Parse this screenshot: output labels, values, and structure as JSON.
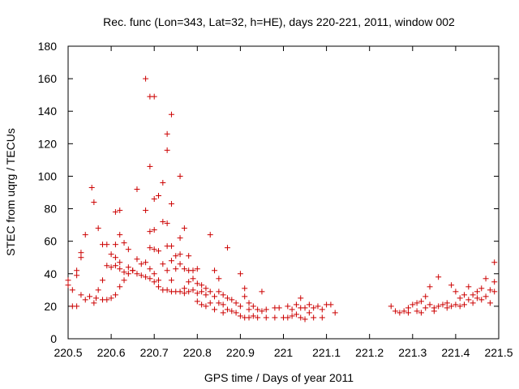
{
  "chart_data": {
    "type": "scatter",
    "title": "Rec. func (Lon=343, Lat=32, h=HE), days 220-221, 2011, window 002",
    "xlabel": "GPS time / Days of year 2011",
    "ylabel": "STEC from uqrg / TECUs",
    "xlim": [
      220.5,
      221.5
    ],
    "ylim": [
      0,
      180
    ],
    "xticks": [
      "220.5",
      "220.6",
      "220.7",
      "220.8",
      "220.9",
      "221",
      "221.1",
      "221.2",
      "221.3",
      "221.4",
      "221.5"
    ],
    "yticks": [
      "0",
      "20",
      "40",
      "60",
      "80",
      "100",
      "120",
      "140",
      "160",
      "180"
    ],
    "grid": false,
    "legend": "none",
    "marker": "plus",
    "color": "#cc0000",
    "points": [
      [
        220.5,
        33
      ],
      [
        220.5,
        36
      ],
      [
        220.51,
        20
      ],
      [
        220.51,
        30
      ],
      [
        220.52,
        39
      ],
      [
        220.52,
        42
      ],
      [
        220.52,
        20
      ],
      [
        220.53,
        50
      ],
      [
        220.53,
        53
      ],
      [
        220.53,
        27
      ],
      [
        220.54,
        64
      ],
      [
        220.54,
        24
      ],
      [
        220.55,
        26
      ],
      [
        220.555,
        93
      ],
      [
        220.56,
        84
      ],
      [
        220.56,
        22
      ],
      [
        220.565,
        25
      ],
      [
        220.57,
        68
      ],
      [
        220.57,
        30
      ],
      [
        220.58,
        58
      ],
      [
        220.58,
        36
      ],
      [
        220.58,
        24
      ],
      [
        220.59,
        58
      ],
      [
        220.59,
        45
      ],
      [
        220.59,
        24
      ],
      [
        220.6,
        52
      ],
      [
        220.6,
        44
      ],
      [
        220.6,
        25
      ],
      [
        220.61,
        78
      ],
      [
        220.61,
        58
      ],
      [
        220.61,
        50
      ],
      [
        220.61,
        45
      ],
      [
        220.61,
        27
      ],
      [
        220.62,
        79
      ],
      [
        220.62,
        64
      ],
      [
        220.62,
        47
      ],
      [
        220.62,
        43
      ],
      [
        220.62,
        32
      ],
      [
        220.63,
        59
      ],
      [
        220.63,
        41
      ],
      [
        220.63,
        36
      ],
      [
        220.64,
        55
      ],
      [
        220.64,
        44
      ],
      [
        220.64,
        40
      ],
      [
        220.65,
        42
      ],
      [
        220.65,
        42
      ],
      [
        220.66,
        92
      ],
      [
        220.66,
        49
      ],
      [
        220.66,
        40
      ],
      [
        220.67,
        46
      ],
      [
        220.67,
        39
      ],
      [
        220.68,
        160
      ],
      [
        220.68,
        79
      ],
      [
        220.68,
        47
      ],
      [
        220.68,
        38
      ],
      [
        220.69,
        149
      ],
      [
        220.69,
        106
      ],
      [
        220.69,
        66
      ],
      [
        220.69,
        56
      ],
      [
        220.69,
        43
      ],
      [
        220.69,
        37
      ],
      [
        220.7,
        149
      ],
      [
        220.7,
        86
      ],
      [
        220.7,
        67
      ],
      [
        220.7,
        55
      ],
      [
        220.7,
        40
      ],
      [
        220.7,
        35
      ],
      [
        220.71,
        88
      ],
      [
        220.71,
        54
      ],
      [
        220.71,
        36
      ],
      [
        220.71,
        32
      ],
      [
        220.72,
        96
      ],
      [
        220.72,
        72
      ],
      [
        220.72,
        46
      ],
      [
        220.72,
        30
      ],
      [
        220.73,
        126
      ],
      [
        220.73,
        116
      ],
      [
        220.73,
        71
      ],
      [
        220.73,
        57
      ],
      [
        220.73,
        42
      ],
      [
        220.73,
        30
      ],
      [
        220.74,
        138
      ],
      [
        220.74,
        83
      ],
      [
        220.74,
        57
      ],
      [
        220.74,
        48
      ],
      [
        220.74,
        36
      ],
      [
        220.74,
        29
      ],
      [
        220.75,
        51
      ],
      [
        220.75,
        43
      ],
      [
        220.75,
        29
      ],
      [
        220.76,
        100
      ],
      [
        220.76,
        62
      ],
      [
        220.76,
        52
      ],
      [
        220.76,
        46
      ],
      [
        220.76,
        29
      ],
      [
        220.77,
        68
      ],
      [
        220.77,
        43
      ],
      [
        220.77,
        31
      ],
      [
        220.77,
        28
      ],
      [
        220.78,
        51
      ],
      [
        220.78,
        42
      ],
      [
        220.78,
        35
      ],
      [
        220.78,
        29
      ],
      [
        220.79,
        42
      ],
      [
        220.79,
        37
      ],
      [
        220.79,
        30
      ],
      [
        220.8,
        43
      ],
      [
        220.8,
        34
      ],
      [
        220.8,
        28
      ],
      [
        220.8,
        23
      ],
      [
        220.81,
        33
      ],
      [
        220.81,
        29
      ],
      [
        220.81,
        21
      ],
      [
        220.82,
        31
      ],
      [
        220.82,
        27
      ],
      [
        220.82,
        20
      ],
      [
        220.83,
        64
      ],
      [
        220.83,
        29
      ],
      [
        220.83,
        22
      ],
      [
        220.84,
        42
      ],
      [
        220.84,
        26
      ],
      [
        220.84,
        18
      ],
      [
        220.85,
        37
      ],
      [
        220.85,
        29
      ],
      [
        220.85,
        22
      ],
      [
        220.86,
        27
      ],
      [
        220.86,
        21
      ],
      [
        220.86,
        16
      ],
      [
        220.87,
        56
      ],
      [
        220.87,
        25
      ],
      [
        220.87,
        18
      ],
      [
        220.88,
        24
      ],
      [
        220.88,
        17
      ],
      [
        220.89,
        22
      ],
      [
        220.89,
        16
      ],
      [
        220.9,
        40
      ],
      [
        220.9,
        20
      ],
      [
        220.9,
        14
      ],
      [
        220.91,
        31
      ],
      [
        220.91,
        26
      ],
      [
        220.91,
        13
      ],
      [
        220.92,
        22
      ],
      [
        220.92,
        18
      ],
      [
        220.92,
        13
      ],
      [
        220.93,
        20
      ],
      [
        220.93,
        14
      ],
      [
        220.94,
        18
      ],
      [
        220.94,
        13
      ],
      [
        220.95,
        29
      ],
      [
        220.95,
        17
      ],
      [
        220.96,
        18
      ],
      [
        220.96,
        13
      ],
      [
        220.98,
        19
      ],
      [
        220.98,
        13
      ],
      [
        220.99,
        19
      ],
      [
        221.0,
        13
      ],
      [
        221.01,
        20
      ],
      [
        221.01,
        13
      ],
      [
        221.02,
        18
      ],
      [
        221.02,
        14
      ],
      [
        221.03,
        21
      ],
      [
        221.03,
        15
      ],
      [
        221.04,
        25
      ],
      [
        221.04,
        19
      ],
      [
        221.04,
        13
      ],
      [
        221.05,
        19
      ],
      [
        221.05,
        12
      ],
      [
        221.06,
        21
      ],
      [
        221.06,
        16
      ],
      [
        221.07,
        19
      ],
      [
        221.07,
        13
      ],
      [
        221.08,
        20
      ],
      [
        221.09,
        18
      ],
      [
        221.09,
        13
      ],
      [
        221.1,
        21
      ],
      [
        221.11,
        21
      ],
      [
        221.12,
        16
      ],
      [
        221.25,
        20
      ],
      [
        221.26,
        17
      ],
      [
        221.27,
        16
      ],
      [
        221.28,
        17
      ],
      [
        221.29,
        19
      ],
      [
        221.29,
        16
      ],
      [
        221.3,
        21
      ],
      [
        221.31,
        22
      ],
      [
        221.31,
        17
      ],
      [
        221.32,
        23
      ],
      [
        221.32,
        16
      ],
      [
        221.33,
        26
      ],
      [
        221.33,
        19
      ],
      [
        221.34,
        32
      ],
      [
        221.34,
        21
      ],
      [
        221.35,
        19
      ],
      [
        221.35,
        17
      ],
      [
        221.36,
        38
      ],
      [
        221.36,
        20
      ],
      [
        221.37,
        21
      ],
      [
        221.38,
        22
      ],
      [
        221.38,
        19
      ],
      [
        221.39,
        33
      ],
      [
        221.39,
        20
      ],
      [
        221.4,
        29
      ],
      [
        221.4,
        21
      ],
      [
        221.41,
        25
      ],
      [
        221.41,
        20
      ],
      [
        221.42,
        27
      ],
      [
        221.42,
        21
      ],
      [
        221.43,
        32
      ],
      [
        221.43,
        24
      ],
      [
        221.44,
        27
      ],
      [
        221.44,
        22
      ],
      [
        221.45,
        29
      ],
      [
        221.45,
        25
      ],
      [
        221.46,
        31
      ],
      [
        221.46,
        24
      ],
      [
        221.47,
        37
      ],
      [
        221.47,
        26
      ],
      [
        221.48,
        30
      ],
      [
        221.48,
        22
      ],
      [
        221.49,
        47
      ],
      [
        221.49,
        35
      ],
      [
        221.49,
        29
      ]
    ]
  }
}
